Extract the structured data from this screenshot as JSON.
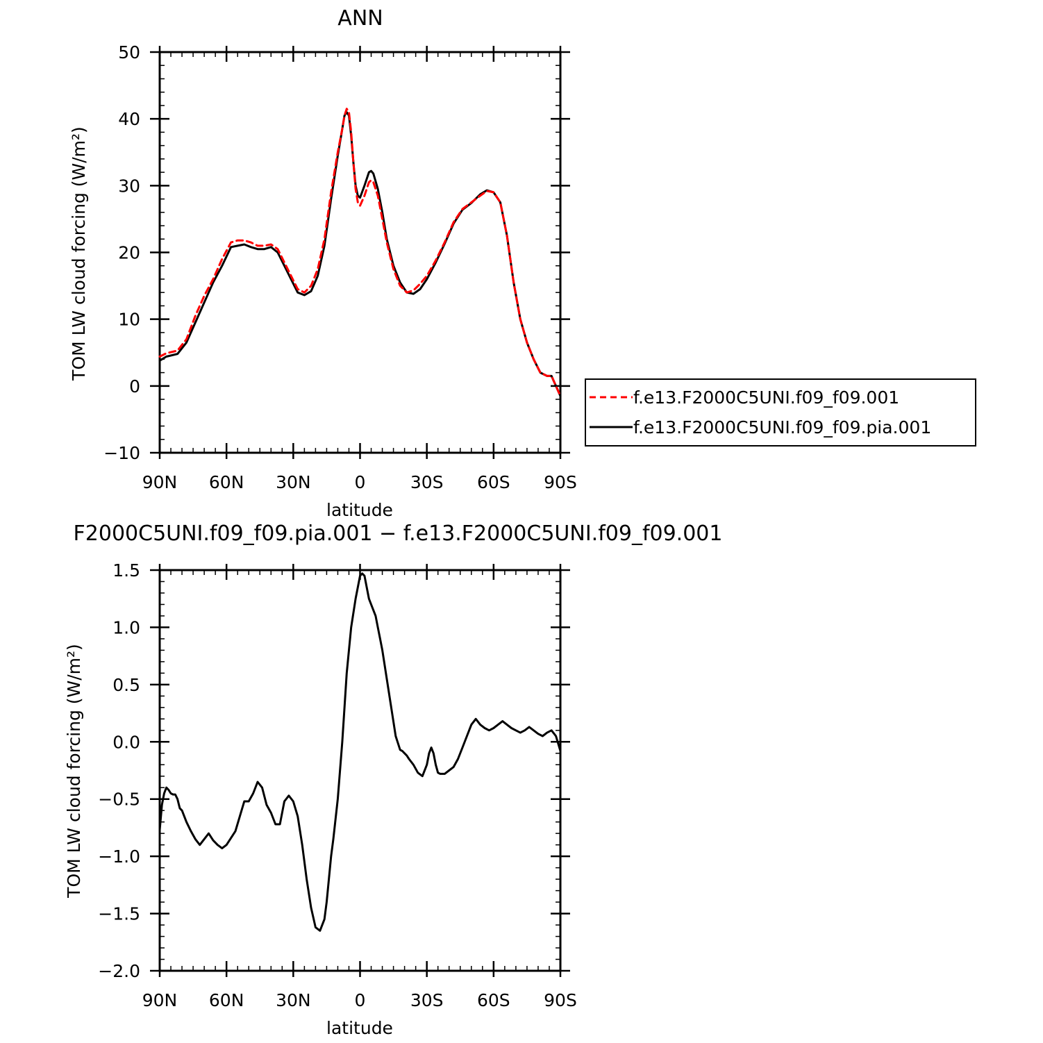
{
  "chart_data": [
    {
      "type": "line",
      "title": "ANN",
      "xlabel": "latitude",
      "ylabel": "TOM LW cloud forcing (W/m²)",
      "xlim": [
        90,
        -90
      ],
      "ylim": [
        -10,
        50
      ],
      "xticks": [
        {
          "v": 90,
          "label": "90N"
        },
        {
          "v": 60,
          "label": "60N"
        },
        {
          "v": 30,
          "label": "30N"
        },
        {
          "v": 0,
          "label": "0"
        },
        {
          "v": -30,
          "label": "30S"
        },
        {
          "v": -60,
          "label": "60S"
        },
        {
          "v": -90,
          "label": "90S"
        }
      ],
      "yticks": [
        {
          "v": -10,
          "label": "−10"
        },
        {
          "v": 0,
          "label": "0"
        },
        {
          "v": 10,
          "label": "10"
        },
        {
          "v": 20,
          "label": "20"
        },
        {
          "v": 30,
          "label": "30"
        },
        {
          "v": 40,
          "label": "40"
        },
        {
          "v": 50,
          "label": "50"
        }
      ],
      "legend_position": "right",
      "series": [
        {
          "name": "f.e13.F2000C5UNI.f09_f09.001",
          "color": "#ff0000",
          "dash": "dashed",
          "x": [
            90,
            87,
            82,
            78,
            74,
            70,
            66,
            62,
            58,
            55,
            52,
            49,
            46,
            43,
            40,
            37,
            34,
            31,
            28,
            25,
            22,
            19,
            16,
            13,
            10,
            8,
            7,
            6,
            5,
            4,
            3,
            2,
            1,
            0,
            -2,
            -4,
            -5,
            -6,
            -8,
            -10,
            -12,
            -15,
            -18,
            -21,
            -24,
            -27,
            -30,
            -34,
            -38,
            -42,
            -46,
            -50,
            -54,
            -57,
            -60,
            -63,
            -66,
            -69,
            -72,
            -75,
            -78,
            -81,
            -84,
            -86,
            -88,
            -90
          ],
          "y": [
            4.4,
            4.9,
            5.3,
            7.0,
            10.5,
            13.5,
            16.0,
            19.0,
            21.5,
            21.8,
            21.8,
            21.5,
            21.0,
            21.0,
            21.2,
            20.5,
            18.5,
            16.5,
            14.5,
            14.0,
            15.0,
            17.5,
            22.0,
            29.0,
            35.0,
            38.5,
            40.5,
            41.5,
            41.0,
            38.0,
            33.5,
            29.5,
            27.5,
            27.0,
            28.5,
            30.5,
            30.8,
            30.5,
            28.5,
            25.0,
            21.5,
            17.5,
            15.0,
            14.0,
            14.3,
            15.3,
            16.5,
            18.8,
            21.5,
            24.5,
            26.5,
            27.5,
            28.5,
            29.2,
            29.0,
            27.5,
            22.5,
            15.5,
            10.0,
            6.5,
            4.0,
            2.0,
            1.5,
            1.5,
            0.0,
            -1.5
          ]
        },
        {
          "name": "f.e13.F2000C5UNI.f09_f09.pia.001",
          "color": "#000000",
          "dash": "solid",
          "x": [
            90,
            87,
            82,
            78,
            74,
            70,
            66,
            62,
            58,
            55,
            52,
            49,
            46,
            43,
            40,
            37,
            34,
            31,
            28,
            25,
            22,
            19,
            16,
            13,
            10,
            8,
            7,
            6,
            5,
            4,
            3,
            2,
            1,
            0,
            -2,
            -4,
            -5,
            -6,
            -8,
            -10,
            -12,
            -15,
            -18,
            -21,
            -24,
            -27,
            -30,
            -34,
            -38,
            -42,
            -46,
            -50,
            -54,
            -57,
            -60,
            -63,
            -66,
            -69,
            -72,
            -75,
            -78,
            -81,
            -84,
            -86,
            -88,
            -90
          ],
          "y": [
            3.8,
            4.4,
            4.8,
            6.5,
            9.5,
            12.5,
            15.5,
            18.0,
            20.8,
            21.0,
            21.2,
            20.8,
            20.5,
            20.5,
            20.8,
            20.0,
            18.0,
            16.0,
            14.0,
            13.6,
            14.2,
            16.5,
            21.0,
            28.0,
            34.5,
            38.5,
            40.5,
            41.0,
            40.5,
            37.5,
            33.5,
            30.0,
            28.5,
            28.2,
            30.0,
            32.0,
            32.2,
            31.8,
            29.5,
            26.0,
            22.0,
            18.0,
            15.5,
            14.0,
            13.8,
            14.5,
            16.0,
            18.5,
            21.3,
            24.3,
            26.4,
            27.4,
            28.7,
            29.3,
            29.0,
            27.5,
            22.5,
            15.5,
            10.0,
            6.5,
            4.0,
            2.0,
            1.5,
            1.5,
            0.0,
            -1.5
          ]
        }
      ]
    },
    {
      "type": "line",
      "title": "F2000C5UNI.f09_f09.pia.001 − f.e13.F2000C5UNI.f09_f09.001",
      "xlabel": "latitude",
      "ylabel": "TOM LW cloud forcing (W/m²)",
      "xlim": [
        90,
        -90
      ],
      "ylim": [
        -2.0,
        1.5
      ],
      "xticks": [
        {
          "v": 90,
          "label": "90N"
        },
        {
          "v": 60,
          "label": "60N"
        },
        {
          "v": 30,
          "label": "30N"
        },
        {
          "v": 0,
          "label": "0"
        },
        {
          "v": -30,
          "label": "30S"
        },
        {
          "v": -60,
          "label": "60S"
        },
        {
          "v": -90,
          "label": "90S"
        }
      ],
      "yticks": [
        {
          "v": -2.0,
          "label": "−2.0"
        },
        {
          "v": -1.5,
          "label": "−1.5"
        },
        {
          "v": -1.0,
          "label": "−1.0"
        },
        {
          "v": -0.5,
          "label": "−0.5"
        },
        {
          "v": 0.0,
          "label": "0.0"
        },
        {
          "v": 0.5,
          "label": "0.5"
        },
        {
          "v": 1.0,
          "label": "1.0"
        },
        {
          "v": 1.5,
          "label": "1.5"
        }
      ],
      "series": [
        {
          "color": "#000000",
          "dash": "solid",
          "x": [
            90,
            89,
            88,
            87,
            86,
            85,
            84,
            83,
            82,
            81,
            80,
            78,
            76,
            74,
            72,
            70,
            68,
            66,
            64,
            62,
            60,
            58,
            56,
            54,
            52,
            50,
            48,
            46,
            44,
            42,
            40,
            38,
            36,
            34,
            32,
            30,
            28,
            26,
            24,
            22,
            20,
            18,
            16,
            15,
            14,
            13,
            12,
            10,
            8,
            6,
            4,
            2,
            0,
            -1,
            -2,
            -3,
            -4,
            -5,
            -6,
            -7,
            -8,
            -9,
            -10,
            -12,
            -14,
            -16,
            -18,
            -19,
            -20,
            -21,
            -22,
            -24,
            -26,
            -28,
            -30,
            -31,
            -32,
            -33,
            -34,
            -35,
            -36,
            -38,
            -40,
            -42,
            -44,
            -46,
            -48,
            -50,
            -52,
            -54,
            -56,
            -58,
            -60,
            -62,
            -64,
            -66,
            -68,
            -70,
            -72,
            -74,
            -76,
            -78,
            -80,
            -82,
            -84,
            -86,
            -88,
            -90
          ],
          "y": [
            -0.77,
            -0.55,
            -0.45,
            -0.4,
            -0.42,
            -0.45,
            -0.46,
            -0.46,
            -0.5,
            -0.58,
            -0.6,
            -0.7,
            -0.78,
            -0.85,
            -0.9,
            -0.85,
            -0.8,
            -0.86,
            -0.9,
            -0.93,
            -0.9,
            -0.84,
            -0.78,
            -0.65,
            -0.52,
            -0.52,
            -0.45,
            -0.35,
            -0.4,
            -0.55,
            -0.62,
            -0.72,
            -0.72,
            -0.52,
            -0.47,
            -0.52,
            -0.65,
            -0.9,
            -1.2,
            -1.45,
            -1.62,
            -1.65,
            -1.55,
            -1.4,
            -1.2,
            -1.0,
            -0.85,
            -0.5,
            0.0,
            0.6,
            1.0,
            1.25,
            1.45,
            1.47,
            1.45,
            1.35,
            1.25,
            1.2,
            1.15,
            1.1,
            1.0,
            0.9,
            0.8,
            0.55,
            0.3,
            0.05,
            -0.07,
            -0.08,
            -0.1,
            -0.12,
            -0.15,
            -0.2,
            -0.27,
            -0.3,
            -0.2,
            -0.1,
            -0.05,
            -0.1,
            -0.2,
            -0.27,
            -0.28,
            -0.28,
            -0.25,
            -0.22,
            -0.15,
            -0.05,
            0.05,
            0.15,
            0.2,
            0.15,
            0.12,
            0.1,
            0.12,
            0.15,
            0.18,
            0.15,
            0.12,
            0.1,
            0.08,
            0.1,
            0.13,
            0.1,
            0.07,
            0.05,
            0.08,
            0.1,
            0.05,
            -0.08
          ]
        }
      ]
    }
  ],
  "colors": {
    "control": "#ff0000",
    "test": "#000000"
  }
}
